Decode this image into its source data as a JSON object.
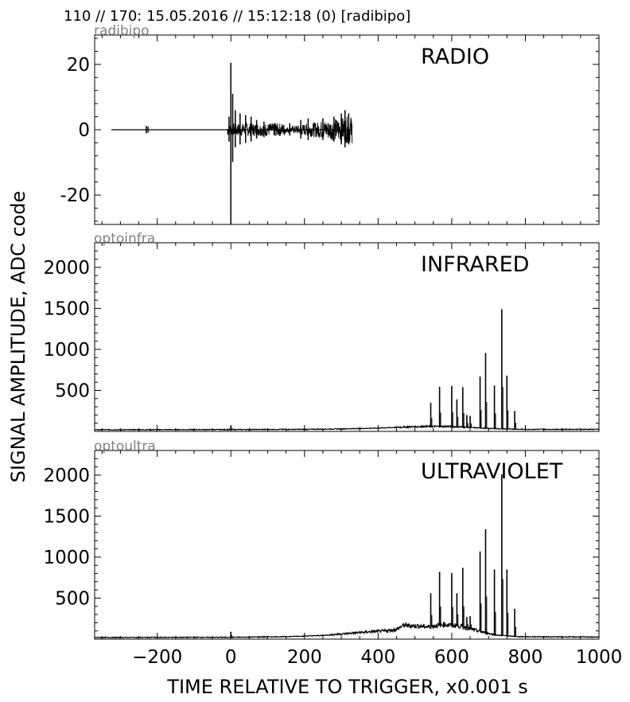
{
  "header": {
    "title": "110 // 170:   15.05.2016 // 15:12:18 (0)  [radibipo]"
  },
  "colors": {
    "line": "#000000",
    "channel_label": "#808080",
    "background": "#ffffff"
  },
  "axes": {
    "xlabel": "TIME RELATIVE TO TRIGGER,   x0.001 s",
    "ylabel": "SIGNAL AMPLITUDE,  ADC code"
  },
  "chart_data": [
    {
      "type": "line",
      "channel": "radibipo",
      "title": "RADIO",
      "xlim": [
        -370,
        1000
      ],
      "ylim": [
        -29,
        29
      ],
      "x_ticks": [
        -200,
        0,
        200,
        400,
        600,
        800,
        1000
      ],
      "y_ticks": [
        -20,
        0,
        20
      ],
      "y_tick_labels": [
        "-20",
        "0",
        "20"
      ],
      "baseline": 0,
      "x_range": [
        -325,
        330
      ],
      "bursts": [
        {
          "x": -230,
          "amp": 1.2
        },
        {
          "x": -225,
          "amp": 1.0
        },
        {
          "x": -5,
          "amp": 4
        },
        {
          "x": 0,
          "amp": 20.5,
          "neg": -29
        },
        {
          "x": 5,
          "amp": 11
        },
        {
          "x": 12,
          "amp": 6
        },
        {
          "x": 25,
          "amp": 5
        },
        {
          "x": 40,
          "amp": 4.5
        },
        {
          "x": 55,
          "amp": 4
        },
        {
          "x": 70,
          "amp": 3
        },
        {
          "x": 90,
          "amp": 2.5
        },
        {
          "x": 120,
          "amp": 2
        },
        {
          "x": 160,
          "amp": 2
        },
        {
          "x": 190,
          "amp": 3
        },
        {
          "x": 210,
          "amp": 3.5
        },
        {
          "x": 250,
          "amp": 3.5
        },
        {
          "x": 280,
          "amp": 4
        },
        {
          "x": 300,
          "amp": 5
        },
        {
          "x": 310,
          "amp": 6
        },
        {
          "x": 320,
          "amp": 5
        }
      ]
    },
    {
      "type": "line",
      "channel": "optoinfra",
      "title": "INFRARED",
      "xlim": [
        -370,
        1000
      ],
      "ylim": [
        0,
        2300
      ],
      "x_ticks": [
        -200,
        0,
        200,
        400,
        600,
        800,
        1000
      ],
      "y_ticks": [
        500,
        1000,
        1500,
        2000
      ],
      "y_tick_labels": [
        "500",
        "1000",
        "1500",
        "2000"
      ],
      "background_points": [
        [
          -370,
          20
        ],
        [
          0,
          22
        ],
        [
          200,
          25
        ],
        [
          300,
          30
        ],
        [
          400,
          40
        ],
        [
          480,
          55
        ],
        [
          530,
          60
        ],
        [
          600,
          60
        ],
        [
          680,
          40
        ],
        [
          740,
          30
        ],
        [
          800,
          25
        ],
        [
          1000,
          25
        ]
      ],
      "peaks": [
        {
          "x": 0,
          "value": 70
        },
        {
          "x": 543,
          "value": 350
        },
        {
          "x": 567,
          "value": 545
        },
        {
          "x": 600,
          "value": 555
        },
        {
          "x": 614,
          "value": 390
        },
        {
          "x": 630,
          "value": 540
        },
        {
          "x": 641,
          "value": 200
        },
        {
          "x": 650,
          "value": 190
        },
        {
          "x": 677,
          "value": 670
        },
        {
          "x": 692,
          "value": 955
        },
        {
          "x": 716,
          "value": 560
        },
        {
          "x": 736,
          "value": 1490
        },
        {
          "x": 750,
          "value": 680
        },
        {
          "x": 771,
          "value": 250
        }
      ]
    },
    {
      "type": "line",
      "channel": "optoultra",
      "title": "ULTRAVIOLET",
      "xlim": [
        -370,
        1000
      ],
      "ylim": [
        0,
        2300
      ],
      "x_ticks": [
        -200,
        0,
        200,
        400,
        600,
        800,
        1000
      ],
      "x_tick_labels": [
        "−200",
        "0",
        "200",
        "400",
        "600",
        "800",
        "1000"
      ],
      "y_ticks": [
        500,
        1000,
        1500,
        2000
      ],
      "y_tick_labels": [
        "500",
        "1000",
        "1500",
        "2000"
      ],
      "background_points": [
        [
          -370,
          20
        ],
        [
          0,
          22
        ],
        [
          150,
          30
        ],
        [
          250,
          45
        ],
        [
          320,
          70
        ],
        [
          380,
          90
        ],
        [
          420,
          100
        ],
        [
          450,
          120
        ],
        [
          470,
          170
        ],
        [
          500,
          160
        ],
        [
          540,
          150
        ],
        [
          580,
          180
        ],
        [
          620,
          160
        ],
        [
          680,
          90
        ],
        [
          720,
          50
        ],
        [
          780,
          30
        ],
        [
          1000,
          25
        ]
      ],
      "peaks": [
        {
          "x": 0,
          "value": 90
        },
        {
          "x": 543,
          "value": 560
        },
        {
          "x": 567,
          "value": 820
        },
        {
          "x": 600,
          "value": 805
        },
        {
          "x": 614,
          "value": 560
        },
        {
          "x": 630,
          "value": 870
        },
        {
          "x": 641,
          "value": 270
        },
        {
          "x": 650,
          "value": 280
        },
        {
          "x": 677,
          "value": 1070
        },
        {
          "x": 692,
          "value": 1340
        },
        {
          "x": 716,
          "value": 850
        },
        {
          "x": 736,
          "value": 2010
        },
        {
          "x": 750,
          "value": 850
        },
        {
          "x": 771,
          "value": 370
        }
      ]
    }
  ]
}
